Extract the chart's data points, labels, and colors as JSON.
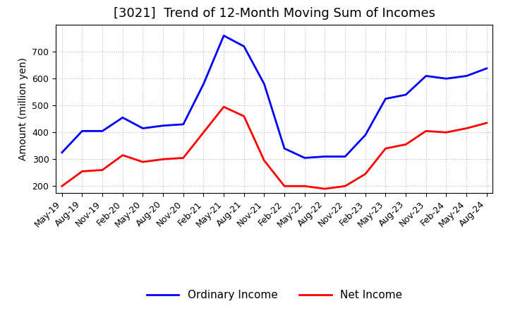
{
  "title": "[3021]  Trend of 12-Month Moving Sum of Incomes",
  "ylabel": "Amount (million yen)",
  "x_labels": [
    "May-19",
    "Aug-19",
    "Nov-19",
    "Feb-20",
    "May-20",
    "Aug-20",
    "Nov-20",
    "Feb-21",
    "May-21",
    "Aug-21",
    "Nov-21",
    "Feb-22",
    "May-22",
    "Aug-22",
    "Nov-22",
    "Feb-23",
    "May-23",
    "Aug-23",
    "Nov-23",
    "Feb-24",
    "May-24",
    "Aug-24"
  ],
  "ordinary_income": [
    325,
    405,
    405,
    455,
    415,
    425,
    430,
    580,
    760,
    720,
    580,
    340,
    305,
    310,
    310,
    390,
    525,
    540,
    610,
    600,
    610,
    638
  ],
  "net_income": [
    200,
    255,
    260,
    315,
    290,
    300,
    305,
    400,
    495,
    460,
    295,
    200,
    200,
    190,
    200,
    245,
    340,
    355,
    405,
    400,
    415,
    435
  ],
  "ordinary_color": "#0000FF",
  "net_color": "#FF0000",
  "ylim": [
    175,
    800
  ],
  "yticks": [
    200,
    300,
    400,
    500,
    600,
    700
  ],
  "background_color": "#FFFFFF",
  "grid_color": "#BBBBBB",
  "title_fontsize": 13,
  "axis_fontsize": 10,
  "tick_fontsize": 9,
  "legend_fontsize": 11
}
